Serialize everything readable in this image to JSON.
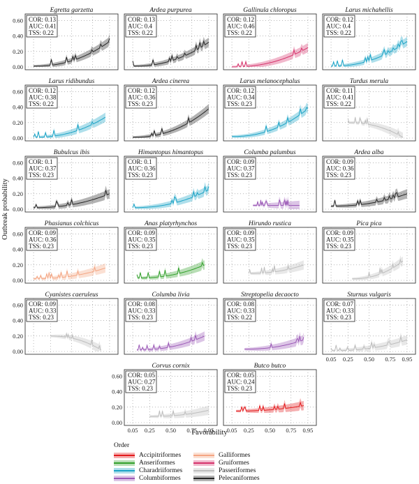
{
  "figure": {
    "ylabel": "Outbreak probability",
    "xlabel": "Favorability",
    "y_ticks": [
      "0.00",
      "0.20",
      "0.40",
      "0.60"
    ],
    "x_ticks": [
      "0.05",
      "0.25",
      "0.50",
      "0.75",
      "0.95"
    ]
  },
  "legend": {
    "title": "Order",
    "items": [
      {
        "label": "Accipitriformes",
        "color": "#e31a1c"
      },
      {
        "label": "Anseriformes",
        "color": "#33a02c"
      },
      {
        "label": "Charadriiformes",
        "color": "#1ba3c6"
      },
      {
        "label": "Columbiformes",
        "color": "#9b59b6"
      },
      {
        "label": "Galliformes",
        "color": "#f4a582"
      },
      {
        "label": "Gruiformes",
        "color": "#d6336c"
      },
      {
        "label": "Passeriformes",
        "color": "#bdbdbd"
      },
      {
        "label": "Pelecaniformes",
        "color": "#262626"
      }
    ]
  },
  "chart_data": [
    {
      "type": "area",
      "title": "Egretta garzetta",
      "order": "Pelecaniformes",
      "stats": [
        "COR: 0.13",
        "AUC: 0.41",
        "TSS: 0.22"
      ],
      "x": [
        0.05,
        0.95
      ],
      "y": [
        0.01,
        0.33
      ],
      "ylim": [
        0,
        0.65
      ],
      "xlim": [
        0,
        1
      ]
    },
    {
      "type": "area",
      "title": "Ardea purpurea",
      "order": "Pelecaniformes",
      "stats": [
        "COR: 0.13",
        "AUC: 0.4",
        "TSS: 0.22"
      ],
      "x": [
        0.05,
        0.95
      ],
      "y": [
        0.01,
        0.32
      ],
      "ylim": [
        0,
        0.65
      ],
      "xlim": [
        0,
        1
      ]
    },
    {
      "type": "area",
      "title": "Gallinula chloropus",
      "order": "Gruiformes",
      "stats": [
        "COR: 0.12",
        "AUC: 0.46",
        "TSS: 0.22"
      ],
      "x": [
        0.05,
        0.95
      ],
      "y": [
        0.0,
        0.25
      ],
      "ylim": [
        0,
        0.65
      ],
      "xlim": [
        0,
        1
      ]
    },
    {
      "type": "area",
      "title": "Larus michahellis",
      "order": "Charadriiformes",
      "stats": [
        "COR: 0.12",
        "AUC: 0.4",
        "TSS: 0.22"
      ],
      "x": [
        0.05,
        0.95
      ],
      "y": [
        0.01,
        0.33
      ],
      "ylim": [
        0,
        0.65
      ],
      "xlim": [
        0,
        1
      ]
    },
    {
      "type": "area",
      "title": "Larus ridibundus",
      "order": "Charadriiformes",
      "stats": [
        "COR: 0.12",
        "AUC: 0.38",
        "TSS: 0.22"
      ],
      "x": [
        0.05,
        0.9
      ],
      "y": [
        0.01,
        0.27
      ],
      "ylim": [
        0,
        0.65
      ],
      "xlim": [
        0,
        1
      ]
    },
    {
      "type": "area",
      "title": "Ardea cinerea",
      "order": "Pelecaniformes",
      "stats": [
        "COR: 0.12",
        "AUC: 0.36",
        "TSS: 0.23"
      ],
      "x": [
        0.05,
        0.95
      ],
      "y": [
        0.01,
        0.38
      ],
      "ylim": [
        0,
        0.65
      ],
      "xlim": [
        0,
        1
      ]
    },
    {
      "type": "area",
      "title": "Larus melanocephalus",
      "order": "Charadriiformes",
      "stats": [
        "COR: 0.12",
        "AUC: 0.34",
        "TSS: 0.23"
      ],
      "x": [
        0.05,
        0.95
      ],
      "y": [
        0.02,
        0.38
      ],
      "ylim": [
        0,
        0.65
      ],
      "xlim": [
        0,
        1
      ]
    },
    {
      "type": "area",
      "title": "Turdus merula",
      "order": "Passeriformes",
      "stats": [
        "COR: 0.11",
        "AUC: 0.41",
        "TSS: 0.22"
      ],
      "x": [
        0.25,
        0.9
      ],
      "y": [
        0.2,
        0.01
      ],
      "ylim": [
        0,
        0.65
      ],
      "xlim": [
        0,
        1
      ]
    },
    {
      "type": "area",
      "title": "Bubulcus ibis",
      "order": "Pelecaniformes",
      "stats": [
        "COR: 0.1",
        "AUC: 0.37",
        "TSS: 0.23"
      ],
      "x": [
        0.05,
        0.95
      ],
      "y": [
        0.02,
        0.2
      ],
      "ylim": [
        0,
        0.65
      ],
      "xlim": [
        0,
        1
      ]
    },
    {
      "type": "area",
      "title": "Himantopus himantopus",
      "order": "Charadriiformes",
      "stats": [
        "COR: 0.1",
        "AUC: 0.36",
        "TSS: 0.23"
      ],
      "x": [
        0.05,
        0.95
      ],
      "y": [
        0.02,
        0.25
      ],
      "ylim": [
        0,
        0.65
      ],
      "xlim": [
        0,
        1
      ]
    },
    {
      "type": "area",
      "title": "Columba palumbus",
      "order": "Columbiformes",
      "stats": [
        "COR: 0.09",
        "AUC: 0.37",
        "TSS: 0.23"
      ],
      "x": [
        0.3,
        0.85
      ],
      "y": [
        0.05,
        0.05
      ],
      "ylim": [
        0,
        0.65
      ],
      "xlim": [
        0,
        1
      ]
    },
    {
      "type": "area",
      "title": "Ardea alba",
      "order": "Pelecaniformes",
      "stats": [
        "COR: 0.09",
        "AUC: 0.36",
        "TSS: 0.23"
      ],
      "x": [
        0.05,
        0.95
      ],
      "y": [
        0.04,
        0.2
      ],
      "ylim": [
        0,
        0.65
      ],
      "xlim": [
        0,
        1
      ]
    },
    {
      "type": "area",
      "title": "Phasianus colchicus",
      "order": "Galliformes",
      "stats": [
        "COR: 0.09",
        "AUC: 0.36",
        "TSS: 0.23"
      ],
      "x": [
        0.05,
        0.9
      ],
      "y": [
        0.02,
        0.16
      ],
      "ylim": [
        0,
        0.65
      ],
      "xlim": [
        0,
        1
      ]
    },
    {
      "type": "area",
      "title": "Anas platyrhynchos",
      "order": "Anseriformes",
      "stats": [
        "COR: 0.09",
        "AUC: 0.35",
        "TSS: 0.23"
      ],
      "x": [
        0.1,
        0.9
      ],
      "y": [
        0.03,
        0.2
      ],
      "ylim": [
        0,
        0.65
      ],
      "xlim": [
        0,
        1
      ]
    },
    {
      "type": "area",
      "title": "Hirundo rustica",
      "order": "Passeriformes",
      "stats": [
        "COR: 0.09",
        "AUC: 0.35",
        "TSS: 0.23"
      ],
      "x": [
        0.25,
        0.9
      ],
      "y": [
        0.09,
        0.2
      ],
      "ylim": [
        0,
        0.65
      ],
      "xlim": [
        0,
        1
      ]
    },
    {
      "type": "area",
      "title": "Pica pica",
      "order": "Passeriformes",
      "stats": [
        "COR: 0.09",
        "AUC: 0.35",
        "TSS: 0.23"
      ],
      "x": [
        0.3,
        0.9
      ],
      "y": [
        0.02,
        0.25
      ],
      "ylim": [
        0,
        0.65
      ],
      "xlim": [
        0,
        1
      ]
    },
    {
      "type": "area",
      "title": "Cyanistes caeruleus",
      "order": "Passeriformes",
      "stats": [
        "COR: 0.09",
        "AUC: 0.33",
        "TSS: 0.23"
      ],
      "x": [
        0.25,
        0.85
      ],
      "y": [
        0.2,
        0.02
      ],
      "ylim": [
        0,
        0.65
      ],
      "xlim": [
        0,
        1
      ]
    },
    {
      "type": "area",
      "title": "Columba livia",
      "order": "Columbiformes",
      "stats": [
        "COR: 0.08",
        "AUC: 0.33",
        "TSS: 0.23"
      ],
      "x": [
        0.1,
        0.9
      ],
      "y": [
        0.02,
        0.2
      ],
      "ylim": [
        0,
        0.65
      ],
      "xlim": [
        0,
        1
      ]
    },
    {
      "type": "area",
      "title": "Streptopelia decaocto",
      "order": "Columbiformes",
      "stats": [
        "COR: 0.08",
        "AUC: 0.33",
        "TSS: 0.22"
      ],
      "x": [
        0.2,
        0.9
      ],
      "y": [
        0.03,
        0.15
      ],
      "ylim": [
        0,
        0.65
      ],
      "xlim": [
        0,
        1
      ]
    },
    {
      "type": "area",
      "title": "Sturnus vulgaris",
      "order": "Passeriformes",
      "stats": [
        "COR: 0.07",
        "AUC: 0.33",
        "TSS: 0.23"
      ],
      "x": [
        0.05,
        0.95
      ],
      "y": [
        0.01,
        0.15
      ],
      "ylim": [
        0,
        0.65
      ],
      "xlim": [
        0,
        1
      ]
    },
    {
      "type": "area",
      "title": "Corvus cornix",
      "order": "Passeriformes",
      "stats": [
        "COR: 0.05",
        "AUC: 0.27",
        "TSS: 0.23"
      ],
      "x": [
        0.25,
        0.95
      ],
      "y": [
        0.08,
        0.16
      ],
      "ylim": [
        0,
        0.65
      ],
      "xlim": [
        0,
        1
      ]
    },
    {
      "type": "area",
      "title": "Butco butco",
      "order": "Accipitriformes",
      "stats": [
        "COR: 0.05",
        "AUC: 0.24",
        "TSS: 0.23"
      ],
      "x": [
        0.1,
        0.9
      ],
      "y": [
        0.15,
        0.22
      ],
      "ylim": [
        0,
        0.65
      ],
      "xlim": [
        0,
        1
      ]
    }
  ]
}
